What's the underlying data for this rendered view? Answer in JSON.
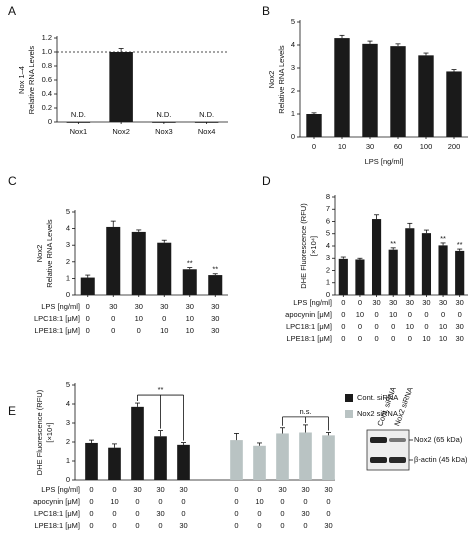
{
  "chart_data": [
    {
      "type": "bar",
      "label": "A",
      "ylabel": [
        "Nox 1–4",
        "Relative RNA Levels"
      ],
      "categories": [
        "Nox1",
        "Nox2",
        "Nox3",
        "Nox4"
      ],
      "values": [
        0,
        1.0,
        0,
        0
      ],
      "errors": [
        null,
        0.05,
        null,
        null
      ],
      "annotations": [
        "N.D.",
        null,
        "N.D.",
        "N.D."
      ],
      "reference_line": 1.0,
      "color": "#1a1a1a",
      "ylim": [
        0,
        1.2
      ],
      "yticks": [
        0,
        0.2,
        0.4,
        0.6,
        0.8,
        {
          "value": 1,
          "label": "1.0"
        },
        1.2
      ]
    },
    {
      "type": "bar",
      "label": "B",
      "ylabel": [
        "Nox2",
        "Relative RNA Levels"
      ],
      "xlabel": "LPS [ng/ml]",
      "categories": [
        "0",
        "10",
        "30",
        "60",
        "100",
        "200"
      ],
      "values": [
        1.0,
        4.3,
        4.05,
        3.95,
        3.55,
        2.85
      ],
      "errors": [
        0.05,
        0.12,
        0.12,
        0.1,
        0.1,
        0.08
      ],
      "color": "#1a1a1a",
      "ylim": [
        0,
        5
      ],
      "yticks": [
        0,
        1,
        2,
        3,
        4,
        5
      ]
    },
    {
      "type": "bar",
      "label": "C",
      "ylabel": [
        "Nox2",
        "Relative RNA Levels"
      ],
      "values": [
        1.05,
        4.1,
        3.8,
        3.15,
        1.55,
        1.2
      ],
      "errors": [
        0.15,
        0.35,
        0.12,
        0.15,
        0.1,
        0.08
      ],
      "significance": [
        null,
        null,
        null,
        null,
        "**",
        "**"
      ],
      "color": "#1a1a1a",
      "ylim": [
        0,
        5
      ],
      "yticks": [
        0,
        1,
        2,
        3,
        4,
        5
      ],
      "conditions": [
        {
          "name": "LPS [ng/ml]",
          "values": [
            0,
            30,
            30,
            30,
            30,
            30
          ]
        },
        {
          "name": "LPC18:1 [μM]",
          "values": [
            0,
            0,
            10,
            0,
            10,
            30
          ]
        },
        {
          "name": "LPE18:1 [μM]",
          "values": [
            0,
            0,
            0,
            10,
            10,
            30
          ]
        }
      ]
    },
    {
      "type": "bar",
      "label": "D",
      "ylabel": [
        "DHE Fluorescence (RFU)",
        "[×10⁴]"
      ],
      "values": [
        2.95,
        2.9,
        6.2,
        3.7,
        5.45,
        5.05,
        4.05,
        3.6
      ],
      "errors": [
        0.15,
        0.1,
        0.35,
        0.15,
        0.4,
        0.25,
        0.2,
        0.15
      ],
      "significance": [
        null,
        null,
        null,
        "**",
        null,
        null,
        "**",
        "**"
      ],
      "color": "#1a1a1a",
      "ylim": [
        0,
        8
      ],
      "yticks": [
        0,
        1,
        2,
        3,
        4,
        5,
        6,
        7,
        8
      ],
      "conditions": [
        {
          "name": "LPS [ng/ml]",
          "values": [
            0,
            0,
            30,
            30,
            30,
            30,
            30,
            30
          ]
        },
        {
          "name": "apocynin [μM]",
          "values": [
            0,
            10,
            0,
            10,
            0,
            0,
            0,
            0
          ]
        },
        {
          "name": "LPC18:1 [μM]",
          "values": [
            0,
            0,
            0,
            0,
            10,
            0,
            10,
            30
          ]
        },
        {
          "name": "LPE18:1 [μM]",
          "values": [
            0,
            0,
            0,
            0,
            0,
            10,
            10,
            30
          ]
        }
      ]
    },
    {
      "type": "grouped_bar",
      "label": "E",
      "ylabel": [
        "DHE Fluorescence (RFU)",
        "[×10⁴]"
      ],
      "series": [
        {
          "name": "Cont. siRNA",
          "color": "#1a1a1a",
          "values": [
            1.95,
            1.7,
            3.85,
            2.3,
            1.85
          ],
          "errors": [
            0.15,
            0.2,
            0.2,
            0.3,
            0.12
          ],
          "bracket_label": "**"
        },
        {
          "name": "Nox2 siRNA",
          "color": "#b9c3c3",
          "values": [
            2.1,
            1.8,
            2.45,
            2.5,
            2.35
          ],
          "errors": [
            0.35,
            0.15,
            0.3,
            0.4,
            0.15
          ],
          "bracket_label": "n.s."
        }
      ],
      "ylim": [
        0,
        5
      ],
      "yticks": [
        0,
        1,
        2,
        3,
        4,
        5
      ],
      "conditions": [
        {
          "name": "LPS [ng/ml]",
          "values": [
            0,
            0,
            30,
            30,
            30,
            0,
            0,
            30,
            30,
            30
          ]
        },
        {
          "name": "apocynin [μM]",
          "values": [
            0,
            10,
            0,
            0,
            0,
            0,
            10,
            0,
            0,
            0
          ]
        },
        {
          "name": "LPC18:1 [μM]",
          "values": [
            0,
            0,
            0,
            30,
            0,
            0,
            0,
            0,
            30,
            0
          ]
        },
        {
          "name": "LPE18:1 [μM]",
          "values": [
            0,
            0,
            0,
            0,
            30,
            0,
            0,
            0,
            0,
            30
          ]
        }
      ]
    }
  ],
  "blot": {
    "lanes": [
      "Cont. siRNA",
      "Nox2 siRNA"
    ],
    "bands": [
      "Nox2 (65 kDa)",
      "β-actin (45 kDa)"
    ]
  }
}
